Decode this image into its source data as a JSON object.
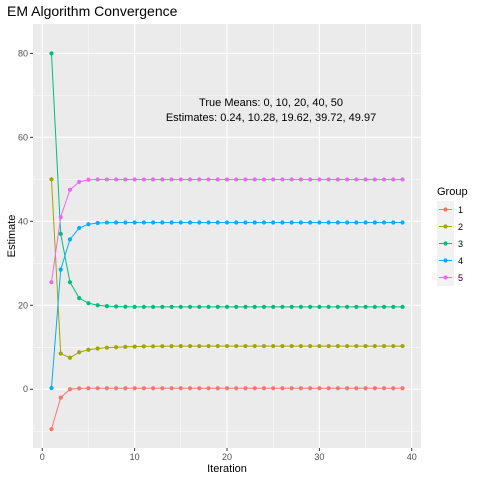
{
  "chart_data": {
    "type": "line",
    "title": "EM Algorithm Convergence",
    "xlabel": "Iteration",
    "ylabel": "Estimate",
    "xlim": [
      -1,
      41
    ],
    "ylim": [
      -14,
      87
    ],
    "x_ticks": [
      0,
      10,
      20,
      30,
      40
    ],
    "y_ticks": [
      0,
      20,
      40,
      60,
      80
    ],
    "grid": true,
    "legend_title": "Group",
    "legend_position": "right",
    "annotation_lines": [
      "True Means: 0, 10, 20, 40, 50",
      "Estimates: 0.24, 10.28, 19.62, 39.72, 49.97"
    ],
    "x": [
      1,
      2,
      3,
      4,
      5,
      6,
      7,
      8,
      9,
      10,
      11,
      12,
      13,
      14,
      15,
      16,
      17,
      18,
      19,
      20,
      21,
      22,
      23,
      24,
      25,
      26,
      27,
      28,
      29,
      30,
      31,
      32,
      33,
      34,
      35,
      36,
      37,
      38,
      39
    ],
    "series": [
      {
        "name": "1",
        "color": "#F8766D",
        "values": [
          -9.5,
          -2,
          0,
          0.2,
          0.24,
          0.24,
          0.24,
          0.24,
          0.24,
          0.24,
          0.24,
          0.24,
          0.24,
          0.24,
          0.24,
          0.24,
          0.24,
          0.24,
          0.24,
          0.24,
          0.24,
          0.24,
          0.24,
          0.24,
          0.24,
          0.24,
          0.24,
          0.24,
          0.24,
          0.24,
          0.24,
          0.24,
          0.24,
          0.24,
          0.24,
          0.24,
          0.24,
          0.24,
          0.24
        ]
      },
      {
        "name": "2",
        "color": "#A3A500",
        "values": [
          50,
          8.5,
          7.5,
          8.8,
          9.4,
          9.7,
          9.9,
          10,
          10.1,
          10.15,
          10.2,
          10.22,
          10.25,
          10.26,
          10.27,
          10.28,
          10.28,
          10.28,
          10.28,
          10.28,
          10.28,
          10.28,
          10.28,
          10.28,
          10.28,
          10.28,
          10.28,
          10.28,
          10.28,
          10.28,
          10.28,
          10.28,
          10.28,
          10.28,
          10.28,
          10.28,
          10.28,
          10.28,
          10.28
        ]
      },
      {
        "name": "3",
        "color": "#00BF7D",
        "values": [
          80,
          37,
          25.5,
          21.7,
          20.5,
          20,
          19.8,
          19.7,
          19.65,
          19.62,
          19.62,
          19.62,
          19.62,
          19.62,
          19.62,
          19.62,
          19.62,
          19.62,
          19.62,
          19.62,
          19.62,
          19.62,
          19.62,
          19.62,
          19.62,
          19.62,
          19.62,
          19.62,
          19.62,
          19.62,
          19.62,
          19.62,
          19.62,
          19.62,
          19.62,
          19.62,
          19.62,
          19.62,
          19.62
        ]
      },
      {
        "name": "4",
        "color": "#00B0F6",
        "values": [
          0.3,
          28.5,
          35.7,
          38.4,
          39.3,
          39.6,
          39.7,
          39.72,
          39.72,
          39.72,
          39.72,
          39.72,
          39.72,
          39.72,
          39.72,
          39.72,
          39.72,
          39.72,
          39.72,
          39.72,
          39.72,
          39.72,
          39.72,
          39.72,
          39.72,
          39.72,
          39.72,
          39.72,
          39.72,
          39.72,
          39.72,
          39.72,
          39.72,
          39.72,
          39.72,
          39.72,
          39.72,
          39.72,
          39.72
        ]
      },
      {
        "name": "5",
        "color": "#E76BF3",
        "values": [
          25.5,
          41,
          47.5,
          49.4,
          49.9,
          49.97,
          49.97,
          49.97,
          49.97,
          49.97,
          49.97,
          49.97,
          49.97,
          49.97,
          49.97,
          49.97,
          49.97,
          49.97,
          49.97,
          49.97,
          49.97,
          49.97,
          49.97,
          49.97,
          49.97,
          49.97,
          49.97,
          49.97,
          49.97,
          49.97,
          49.97,
          49.97,
          49.97,
          49.97,
          49.97,
          49.97,
          49.97,
          49.97,
          49.97
        ]
      }
    ]
  }
}
